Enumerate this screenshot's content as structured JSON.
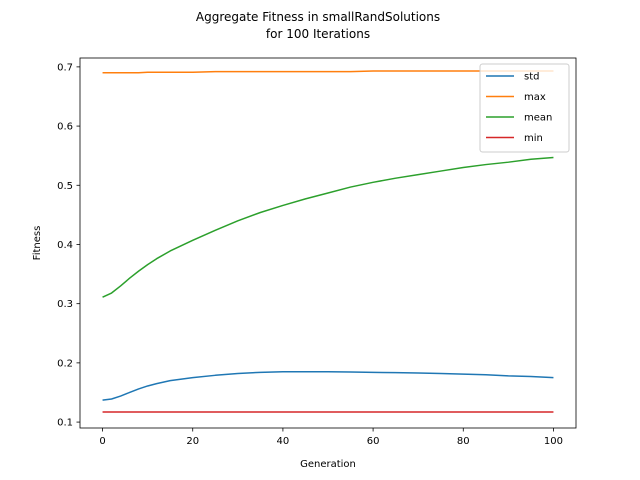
{
  "chart_data": {
    "type": "line",
    "title": [
      "Aggregate Fitness in smallRandSolutions",
      "for 100 Iterations"
    ],
    "xlabel": "Generation",
    "ylabel": "Fitness",
    "xlim": [
      -5,
      105
    ],
    "ylim": [
      0.09,
      0.715
    ],
    "xticks": [
      0,
      20,
      40,
      60,
      80,
      100
    ],
    "xtick_labels": [
      "0",
      "20",
      "40",
      "60",
      "80",
      "100"
    ],
    "yticks": [
      0.1,
      0.2,
      0.3,
      0.4,
      0.5,
      0.6,
      0.7
    ],
    "ytick_labels": [
      "0.1",
      "0.2",
      "0.3",
      "0.4",
      "0.5",
      "0.6",
      "0.7"
    ],
    "grid": false,
    "legend_position": "top-right",
    "x": [
      0,
      2,
      4,
      6,
      8,
      10,
      12,
      15,
      20,
      25,
      30,
      35,
      40,
      45,
      50,
      55,
      60,
      65,
      70,
      75,
      80,
      85,
      90,
      95,
      100
    ],
    "series": [
      {
        "name": "std",
        "color": "#1f77b4",
        "values": [
          0.137,
          0.139,
          0.144,
          0.15,
          0.156,
          0.161,
          0.165,
          0.17,
          0.175,
          0.179,
          0.182,
          0.184,
          0.185,
          0.185,
          0.185,
          0.1845,
          0.184,
          0.1835,
          0.183,
          0.182,
          0.181,
          0.18,
          0.178,
          0.177,
          0.175
        ]
      },
      {
        "name": "max",
        "color": "#ff7f0e",
        "values": [
          0.69,
          0.69,
          0.69,
          0.69,
          0.69,
          0.691,
          0.691,
          0.691,
          0.691,
          0.692,
          0.692,
          0.692,
          0.692,
          0.692,
          0.692,
          0.692,
          0.693,
          0.693,
          0.693,
          0.693,
          0.693,
          0.693,
          0.693,
          0.693,
          0.693
        ]
      },
      {
        "name": "mean",
        "color": "#2ca02c",
        "values": [
          0.311,
          0.318,
          0.33,
          0.343,
          0.355,
          0.366,
          0.376,
          0.389,
          0.407,
          0.424,
          0.44,
          0.454,
          0.466,
          0.477,
          0.487,
          0.497,
          0.505,
          0.512,
          0.518,
          0.524,
          0.53,
          0.535,
          0.539,
          0.544,
          0.547
        ]
      },
      {
        "name": "min",
        "color": "#d62728",
        "values": [
          0.117,
          0.117,
          0.117,
          0.117,
          0.117,
          0.117,
          0.117,
          0.117,
          0.117,
          0.117,
          0.117,
          0.117,
          0.117,
          0.117,
          0.117,
          0.117,
          0.117,
          0.117,
          0.117,
          0.117,
          0.117,
          0.117,
          0.117,
          0.117,
          0.117
        ]
      }
    ]
  }
}
